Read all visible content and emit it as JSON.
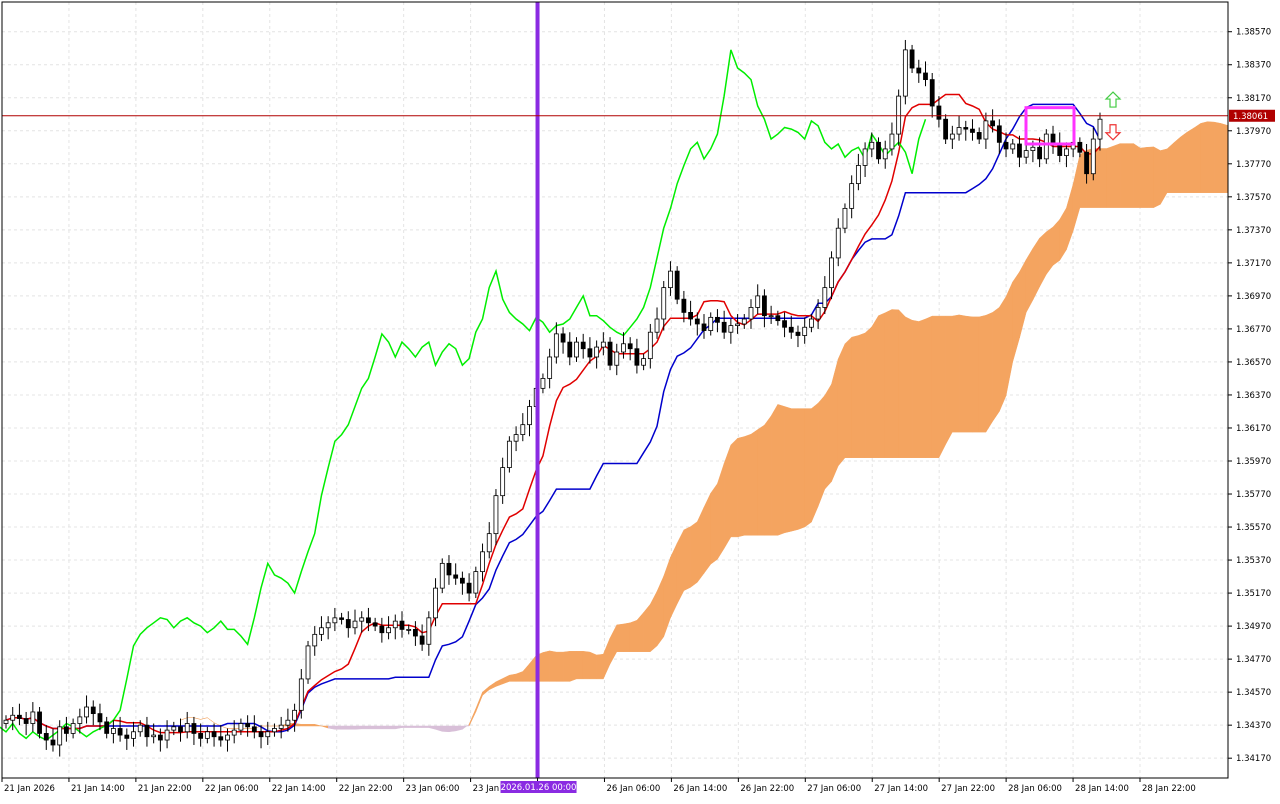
{
  "chart_data": {
    "type": "candlestick",
    "symbol_price_now": "1.38061",
    "colors": {
      "background": "#ffffff",
      "grid": "#e4e4e4",
      "tenkan": "#e00000",
      "kijun": "#0000cc",
      "chikou": "#00ee00",
      "kumo_bull": "#f4a460",
      "kumo_bear": "#d8bfd8",
      "candle_bull": "#ffffff",
      "candle_bear": "#000000",
      "price_line": "#b00000",
      "vline": "#8a2be2",
      "highlight_box": "#ff33ff",
      "arrow_up": "#44cc44",
      "arrow_down": "#ee3333"
    },
    "y_axis": {
      "min": 1.3405,
      "max": 1.3875,
      "ticks": [
        "1.38570",
        "1.38370",
        "1.38170",
        "1.37970",
        "1.37770",
        "1.37570",
        "1.37370",
        "1.37170",
        "1.36970",
        "1.36770",
        "1.36570",
        "1.36370",
        "1.36170",
        "1.35970",
        "1.35770",
        "1.35570",
        "1.35370",
        "1.35170",
        "1.34970",
        "1.34770",
        "1.34570",
        "1.34370",
        "1.34170"
      ]
    },
    "x_axis": {
      "labels": [
        "21 Jan 2026",
        "21 Jan 14:00",
        "21 Jan 22:00",
        "22 Jan 06:00",
        "22 Jan 14:00",
        "22 Jan 22:00",
        "23 Jan 06:00",
        "23 Jan 14:00",
        "2026.01.26 00:00",
        "26 Jan 06:00",
        "26 Jan 14:00",
        "26 Jan 22:00",
        "27 Jan 06:00",
        "27 Jan 14:00",
        "27 Jan 22:00",
        "28 Jan 06:00",
        "28 Jan 14:00",
        "28 Jan 22:00"
      ],
      "highlight_label": "2026.01.26 00:00"
    },
    "series": [
      {
        "name": "candles",
        "kind": "ohlc",
        "close": [
          1.344,
          1.3443,
          1.3441,
          1.3438,
          1.3445,
          1.3432,
          1.3428,
          1.3425,
          1.3436,
          1.3432,
          1.3438,
          1.3442,
          1.3448,
          1.3444,
          1.3439,
          1.3432,
          1.3435,
          1.3431,
          1.3429,
          1.3433,
          1.3437,
          1.343,
          1.3431,
          1.3428,
          1.3434,
          1.3436,
          1.3433,
          1.3438,
          1.3432,
          1.3429,
          1.3433,
          1.343,
          1.3428,
          1.3431,
          1.3434,
          1.3438,
          1.3436,
          1.3433,
          1.343,
          1.3433,
          1.3435,
          1.3437,
          1.344,
          1.3446,
          1.3465,
          1.3485,
          1.3492,
          1.3496,
          1.3499,
          1.3502,
          1.3501,
          1.3496,
          1.35,
          1.3502,
          1.3499,
          1.3497,
          1.3493,
          1.3496,
          1.35,
          1.3495,
          1.3495,
          1.3491,
          1.3486,
          1.3502,
          1.352,
          1.3535,
          1.3528,
          1.3526,
          1.3523,
          1.3517,
          1.353,
          1.3542,
          1.3553,
          1.3576,
          1.3593,
          1.3609,
          1.3613,
          1.3619,
          1.363,
          1.3641,
          1.3647,
          1.366,
          1.3674,
          1.3669,
          1.366,
          1.3669,
          1.3665,
          1.366,
          1.3666,
          1.3669,
          1.3655,
          1.3663,
          1.3668,
          1.3665,
          1.3655,
          1.3659,
          1.3675,
          1.3683,
          1.3702,
          1.3712,
          1.3695,
          1.3687,
          1.3683,
          1.368,
          1.3676,
          1.3684,
          1.3681,
          1.3675,
          1.3679,
          1.368,
          1.3683,
          1.369,
          1.3697,
          1.3685,
          1.3685,
          1.3682,
          1.3678,
          1.3675,
          1.3673,
          1.3678,
          1.3683,
          1.369,
          1.3702,
          1.372,
          1.3738,
          1.375,
          1.3765,
          1.3776,
          1.3786,
          1.379,
          1.378,
          1.3786,
          1.3795,
          1.3818,
          1.3846,
          1.3835,
          1.3832,
          1.3828,
          1.3812,
          1.3804,
          1.3792,
          1.3795,
          1.3799,
          1.3798,
          1.3796,
          1.3792,
          1.3803,
          1.38,
          1.379,
          1.3786,
          1.3789,
          1.3781,
          1.3785,
          1.3787,
          1.378,
          1.3795,
          1.3789,
          1.3782,
          1.3786,
          1.379,
          1.3784,
          1.3771,
          1.3792,
          1.3804
        ]
      },
      {
        "name": "tenkan",
        "kind": "line"
      },
      {
        "name": "kijun",
        "kind": "line"
      },
      {
        "name": "chikou",
        "kind": "line"
      },
      {
        "name": "kumo",
        "kind": "cloud"
      }
    ]
  }
}
